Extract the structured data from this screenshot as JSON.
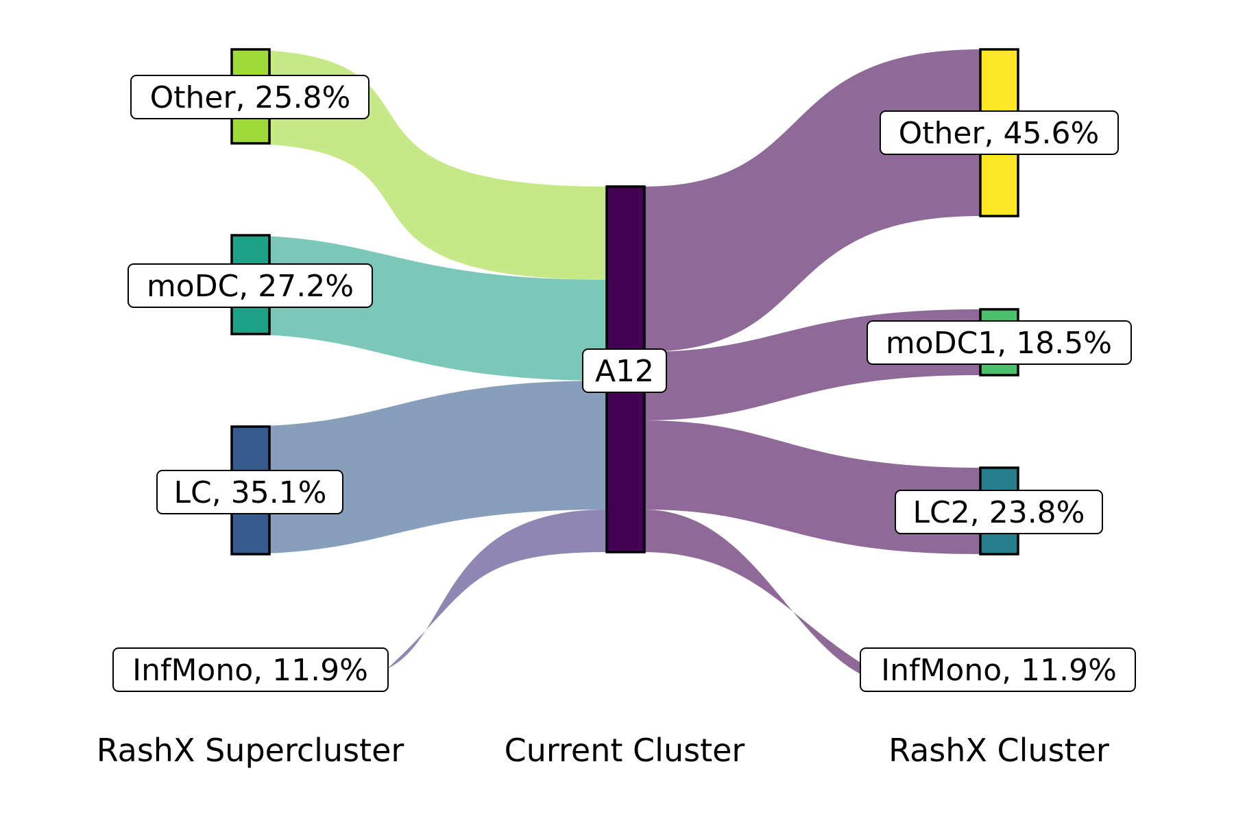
{
  "columns": {
    "left_title": "RashX Supercluster",
    "center_title": "Current Cluster",
    "right_title": "RashX Cluster"
  },
  "left_nodes": [
    {
      "label": "Other, 25.8%",
      "color": "#a0da39"
    },
    {
      "label": "moDC, 27.2%",
      "color": "#1fa187"
    },
    {
      "label": "LC, 35.1%",
      "color": "#365c8d"
    },
    {
      "label": "InfMono, 11.9%",
      "color": "#440154"
    }
  ],
  "center_node": {
    "label": "A12",
    "color": "#440154"
  },
  "right_nodes": [
    {
      "label": "Other, 45.6%",
      "color": "#fde725"
    },
    {
      "label": "moDC1, 18.5%",
      "color": "#4ac16d"
    },
    {
      "label": "LC2, 23.8%",
      "color": "#277f8e"
    },
    {
      "label": "InfMono, 11.9%",
      "color": "#440154"
    }
  ],
  "flow_colors": {
    "left": [
      "#c6e988",
      "#7cc8b8",
      "#889fbc",
      "#8f86b4"
    ],
    "right": "#8f6a98"
  }
}
